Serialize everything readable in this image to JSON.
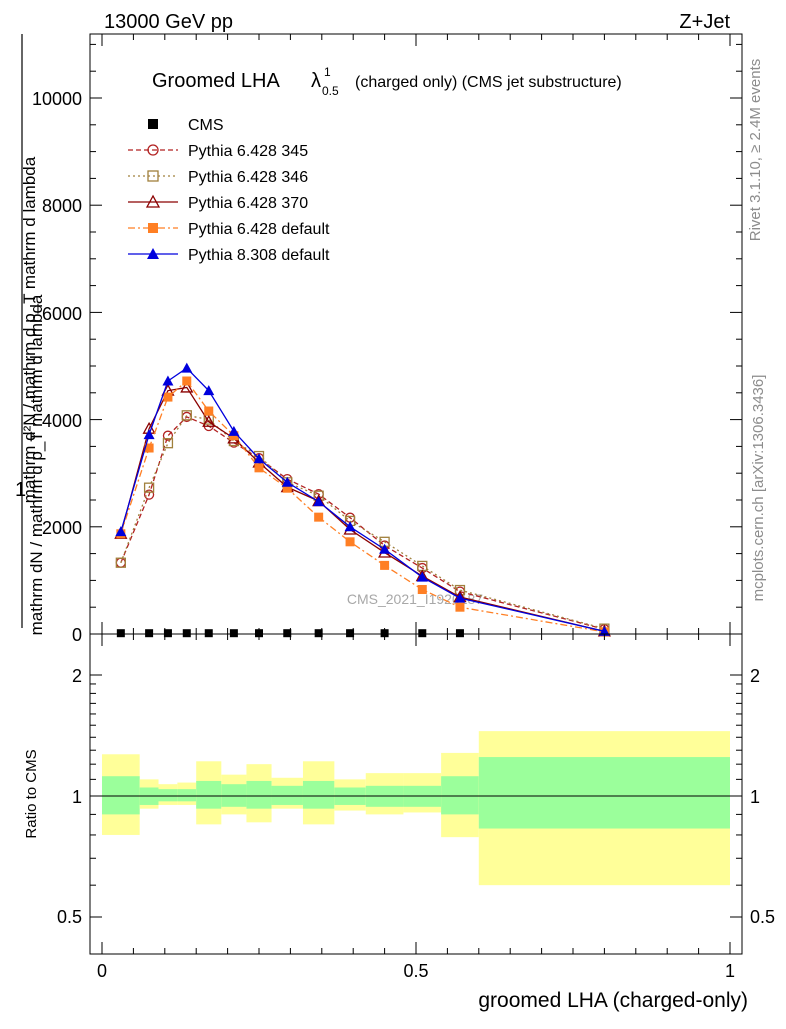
{
  "header": {
    "energy_label": "13000 GeV pp",
    "process_label": "Z+Jet"
  },
  "side_labels": {
    "rivet": "Rivet 3.1.10, ≥ 2.4M events",
    "mcplots": "mcplots.cern.ch [arXiv:1306.3436]"
  },
  "main_plot": {
    "title_main": "Groomed LHA",
    "title_lambda": "λ",
    "title_sup": "1",
    "title_sub": "0.5",
    "title_rest": "(charged only) (CMS jet substructure)",
    "ylabel_one": "1",
    "ylabel_left": "mathrm d²N / mathrm d p_T mathrm d lambda",
    "ylabel_right": "mathrm dN / mathrm d p_T mathrm d lambda",
    "analysis_label": "CMS_2021_I1920187",
    "yticks": [
      "0",
      "2000",
      "4000",
      "6000",
      "8000",
      "10000"
    ]
  },
  "ratio_plot": {
    "ylabel": "Ratio to CMS",
    "yticks_left": [
      "0.5",
      "1",
      "2"
    ],
    "yticks_right": [
      "0.5",
      "1",
      "2"
    ],
    "xlabel": "groomed LHA (charged-only)",
    "xticks": [
      "0",
      "0.5",
      "1"
    ]
  },
  "colors": {
    "cms": "#000000",
    "p345": "#b22222",
    "p346": "#a0803c",
    "p370": "#8b0000",
    "p6def": "#ff7f24",
    "p8def": "#0000dd",
    "band_inner": "#9bff9b",
    "band_outer": "#ffff99"
  },
  "chart_data": [
    {
      "type": "line",
      "xlabel": "groomed LHA (charged-only)",
      "ylim": [
        0,
        11200
      ],
      "xlim": [
        -0.02,
        1.02
      ],
      "x": [
        0.03,
        0.075,
        0.105,
        0.135,
        0.17,
        0.21,
        0.25,
        0.295,
        0.345,
        0.395,
        0.45,
        0.51,
        0.57,
        0.8
      ],
      "legend_position": "top-left",
      "series": [
        {
          "name": "CMS",
          "marker": "filled-square",
          "values": [
            15,
            15,
            15,
            15,
            15,
            15,
            15,
            15,
            15,
            15,
            15,
            15,
            15,
            null
          ]
        },
        {
          "name": "Pythia 6.428 345",
          "marker": "open-circle",
          "dash": "5,3",
          "values": [
            1330,
            2600,
            3700,
            4050,
            3880,
            3570,
            3280,
            2890,
            2610,
            2170,
            1650,
            1230,
            790,
            90
          ]
        },
        {
          "name": "Pythia 6.428 346",
          "marker": "open-square",
          "dash": "2,3",
          "values": [
            1330,
            2730,
            3560,
            4080,
            4000,
            3600,
            3320,
            2830,
            2580,
            2110,
            1720,
            1270,
            820,
            100
          ]
        },
        {
          "name": "Pythia 6.428 370",
          "marker": "open-triangle",
          "dash": "",
          "values": [
            1870,
            3830,
            4540,
            4600,
            3960,
            3650,
            3200,
            2740,
            2480,
            1950,
            1520,
            1080,
            690,
            50
          ]
        },
        {
          "name": "Pythia 6.428 default",
          "marker": "filled-square",
          "dash": "7,3,2,3",
          "values": [
            1870,
            3470,
            4420,
            4720,
            4160,
            3700,
            3100,
            2720,
            2180,
            1720,
            1280,
            830,
            500,
            40
          ]
        },
        {
          "name": "Pythia 8.308 default",
          "marker": "filled-triangle",
          "dash": "",
          "values": [
            1910,
            3720,
            4720,
            4960,
            4540,
            3780,
            3270,
            2830,
            2470,
            2000,
            1580,
            1060,
            670,
            50
          ]
        }
      ]
    },
    {
      "type": "area",
      "ylabel": "Ratio to CMS",
      "ylog": true,
      "ylim": [
        0.4,
        2.45
      ],
      "reference": 1,
      "bins": [
        [
          0.0,
          0.06
        ],
        [
          0.06,
          0.09
        ],
        [
          0.09,
          0.12
        ],
        [
          0.12,
          0.15
        ],
        [
          0.15,
          0.19
        ],
        [
          0.19,
          0.23
        ],
        [
          0.23,
          0.27
        ],
        [
          0.27,
          0.32
        ],
        [
          0.32,
          0.37
        ],
        [
          0.37,
          0.42
        ],
        [
          0.42,
          0.48
        ],
        [
          0.48,
          0.54
        ],
        [
          0.54,
          0.6
        ],
        [
          0.6,
          1.0
        ]
      ],
      "inner_band": [
        [
          0.9,
          1.12
        ],
        [
          0.95,
          1.05
        ],
        [
          0.97,
          1.04
        ],
        [
          0.97,
          1.04
        ],
        [
          0.93,
          1.09
        ],
        [
          0.94,
          1.07
        ],
        [
          0.93,
          1.09
        ],
        [
          0.95,
          1.06
        ],
        [
          0.93,
          1.09
        ],
        [
          0.95,
          1.05
        ],
        [
          0.94,
          1.06
        ],
        [
          0.94,
          1.06
        ],
        [
          0.9,
          1.12
        ],
        [
          0.83,
          1.25
        ]
      ],
      "outer_band": [
        [
          0.8,
          1.27
        ],
        [
          0.93,
          1.1
        ],
        [
          0.95,
          1.07
        ],
        [
          0.95,
          1.08
        ],
        [
          0.85,
          1.22
        ],
        [
          0.9,
          1.13
        ],
        [
          0.86,
          1.2
        ],
        [
          0.93,
          1.11
        ],
        [
          0.85,
          1.22
        ],
        [
          0.92,
          1.1
        ],
        [
          0.9,
          1.14
        ],
        [
          0.91,
          1.14
        ],
        [
          0.79,
          1.28
        ],
        [
          0.6,
          1.45
        ]
      ]
    }
  ]
}
